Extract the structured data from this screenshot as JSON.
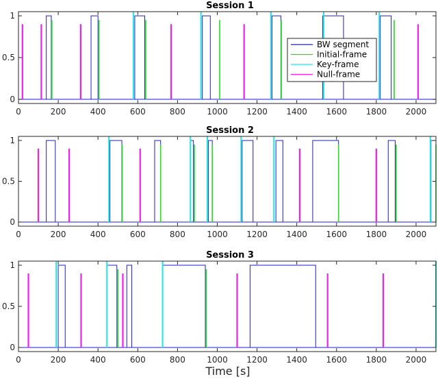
{
  "figure": {
    "xlabel": "Time [s]"
  },
  "colors": {
    "bw_segment": "#1f1fbf",
    "initial_frame": "#22dd22",
    "key_frame": "#22e6e6",
    "null_frame": "#ee22ee",
    "axis": "#262626"
  },
  "legend": {
    "placement": "upper-right of Session 1 panel",
    "entries": [
      {
        "label": "BW segment",
        "color": "#1f1fbf"
      },
      {
        "label": "Initial-frame",
        "color": "#22dd22"
      },
      {
        "label": "Key-frame",
        "color": "#22e6e6"
      },
      {
        "label": "Null-frame",
        "color": "#ee22ee"
      }
    ]
  },
  "chart_data": [
    {
      "type": "line",
      "title": "Session 1",
      "xlim": [
        0,
        2100
      ],
      "ylim": [
        -0.05,
        1.05
      ],
      "xticks": [
        0,
        200,
        400,
        600,
        800,
        1000,
        1200,
        1400,
        1600,
        1800,
        2000
      ],
      "yticks": [
        0,
        0.5,
        1
      ],
      "ytick_labels": [
        "0",
        "0.5",
        "1"
      ],
      "grid": false,
      "bw_segments": [
        [
          140,
          165
        ],
        [
          365,
          400
        ],
        [
          585,
          635
        ],
        [
          925,
          965
        ],
        [
          1275,
          1320
        ],
        [
          1530,
          1635
        ],
        [
          1820,
          1875
        ]
      ],
      "initial_frames": [
        {
          "x": 168,
          "y": 0.95
        },
        {
          "x": 405,
          "y": 0.95
        },
        {
          "x": 640,
          "y": 0.95
        },
        {
          "x": 1012,
          "y": 0.95
        },
        {
          "x": 1322,
          "y": 0.95
        },
        {
          "x": 1890,
          "y": 0.95
        }
      ],
      "key_frames": [
        {
          "x": 578,
          "y": 1.05
        },
        {
          "x": 918,
          "y": 1.05
        },
        {
          "x": 1270,
          "y": 1.05
        },
        {
          "x": 1535,
          "y": 1.05
        },
        {
          "x": 1815,
          "y": 1.05
        }
      ],
      "null_frames": [
        {
          "x": 20,
          "y": 0.9
        },
        {
          "x": 115,
          "y": 0.9
        },
        {
          "x": 313,
          "y": 0.9
        },
        {
          "x": 768,
          "y": 0.9
        },
        {
          "x": 1135,
          "y": 0.9
        },
        {
          "x": 2010,
          "y": 0.9
        }
      ]
    },
    {
      "type": "line",
      "title": "Session 2",
      "xlim": [
        0,
        2100
      ],
      "ylim": [
        -0.05,
        1.05
      ],
      "xticks": [
        0,
        200,
        400,
        600,
        800,
        1000,
        1200,
        1400,
        1600,
        1800,
        2000
      ],
      "yticks": [
        0,
        0.5,
        1
      ],
      "ytick_labels": [
        "0",
        "0.5",
        "1"
      ],
      "grid": false,
      "bw_segments": [
        [
          140,
          185
        ],
        [
          460,
          520
        ],
        [
          685,
          715
        ],
        [
          865,
          880
        ],
        [
          955,
          975
        ],
        [
          1125,
          1180
        ],
        [
          1295,
          1330
        ],
        [
          1480,
          1610
        ],
        [
          1860,
          1895
        ],
        [
          2075,
          2100
        ]
      ],
      "initial_frames": [
        {
          "x": 522,
          "y": 0.95
        },
        {
          "x": 715,
          "y": 0.95
        },
        {
          "x": 885,
          "y": 0.95
        },
        {
          "x": 975,
          "y": 0.95
        },
        {
          "x": 1610,
          "y": 0.95
        },
        {
          "x": 1900,
          "y": 0.95
        },
        {
          "x": 2100,
          "y": 0.95
        }
      ],
      "key_frames": [
        {
          "x": 455,
          "y": 1.05
        },
        {
          "x": 865,
          "y": 1.05
        },
        {
          "x": 950,
          "y": 1.05
        },
        {
          "x": 1120,
          "y": 1.05
        },
        {
          "x": 1285,
          "y": 1.05
        },
        {
          "x": 2072,
          "y": 1.05
        }
      ],
      "null_frames": [
        {
          "x": 100,
          "y": 0.9
        },
        {
          "x": 255,
          "y": 0.9
        },
        {
          "x": 612,
          "y": 0.9
        },
        {
          "x": 1415,
          "y": 0.9
        },
        {
          "x": 1800,
          "y": 0.9
        }
      ]
    },
    {
      "type": "line",
      "title": "Session 3",
      "xlim": [
        0,
        2100
      ],
      "ylim": [
        -0.05,
        1.05
      ],
      "xticks": [
        0,
        200,
        400,
        600,
        800,
        1000,
        1200,
        1400,
        1600,
        1800,
        2000
      ],
      "yticks": [
        0,
        0.5,
        1
      ],
      "ytick_labels": [
        "0",
        "0.5",
        "1"
      ],
      "grid": false,
      "bw_segments": [
        [
          200,
          235
        ],
        [
          445,
          495
        ],
        [
          545,
          570
        ],
        [
          725,
          940
        ],
        [
          1165,
          1495
        ]
      ],
      "initial_frames": [
        {
          "x": 500,
          "y": 0.95
        },
        {
          "x": 945,
          "y": 0.95
        }
      ],
      "key_frames": [
        {
          "x": 190,
          "y": 1.05
        },
        {
          "x": 445,
          "y": 1.05
        },
        {
          "x": 725,
          "y": 1.05
        },
        {
          "x": 2100,
          "y": 1.05
        }
      ],
      "null_frames": [
        {
          "x": 50,
          "y": 0.9
        },
        {
          "x": 315,
          "y": 0.9
        },
        {
          "x": 525,
          "y": 0.9
        },
        {
          "x": 1100,
          "y": 0.9
        },
        {
          "x": 1555,
          "y": 0.9
        },
        {
          "x": 1835,
          "y": 0.9
        }
      ]
    }
  ]
}
